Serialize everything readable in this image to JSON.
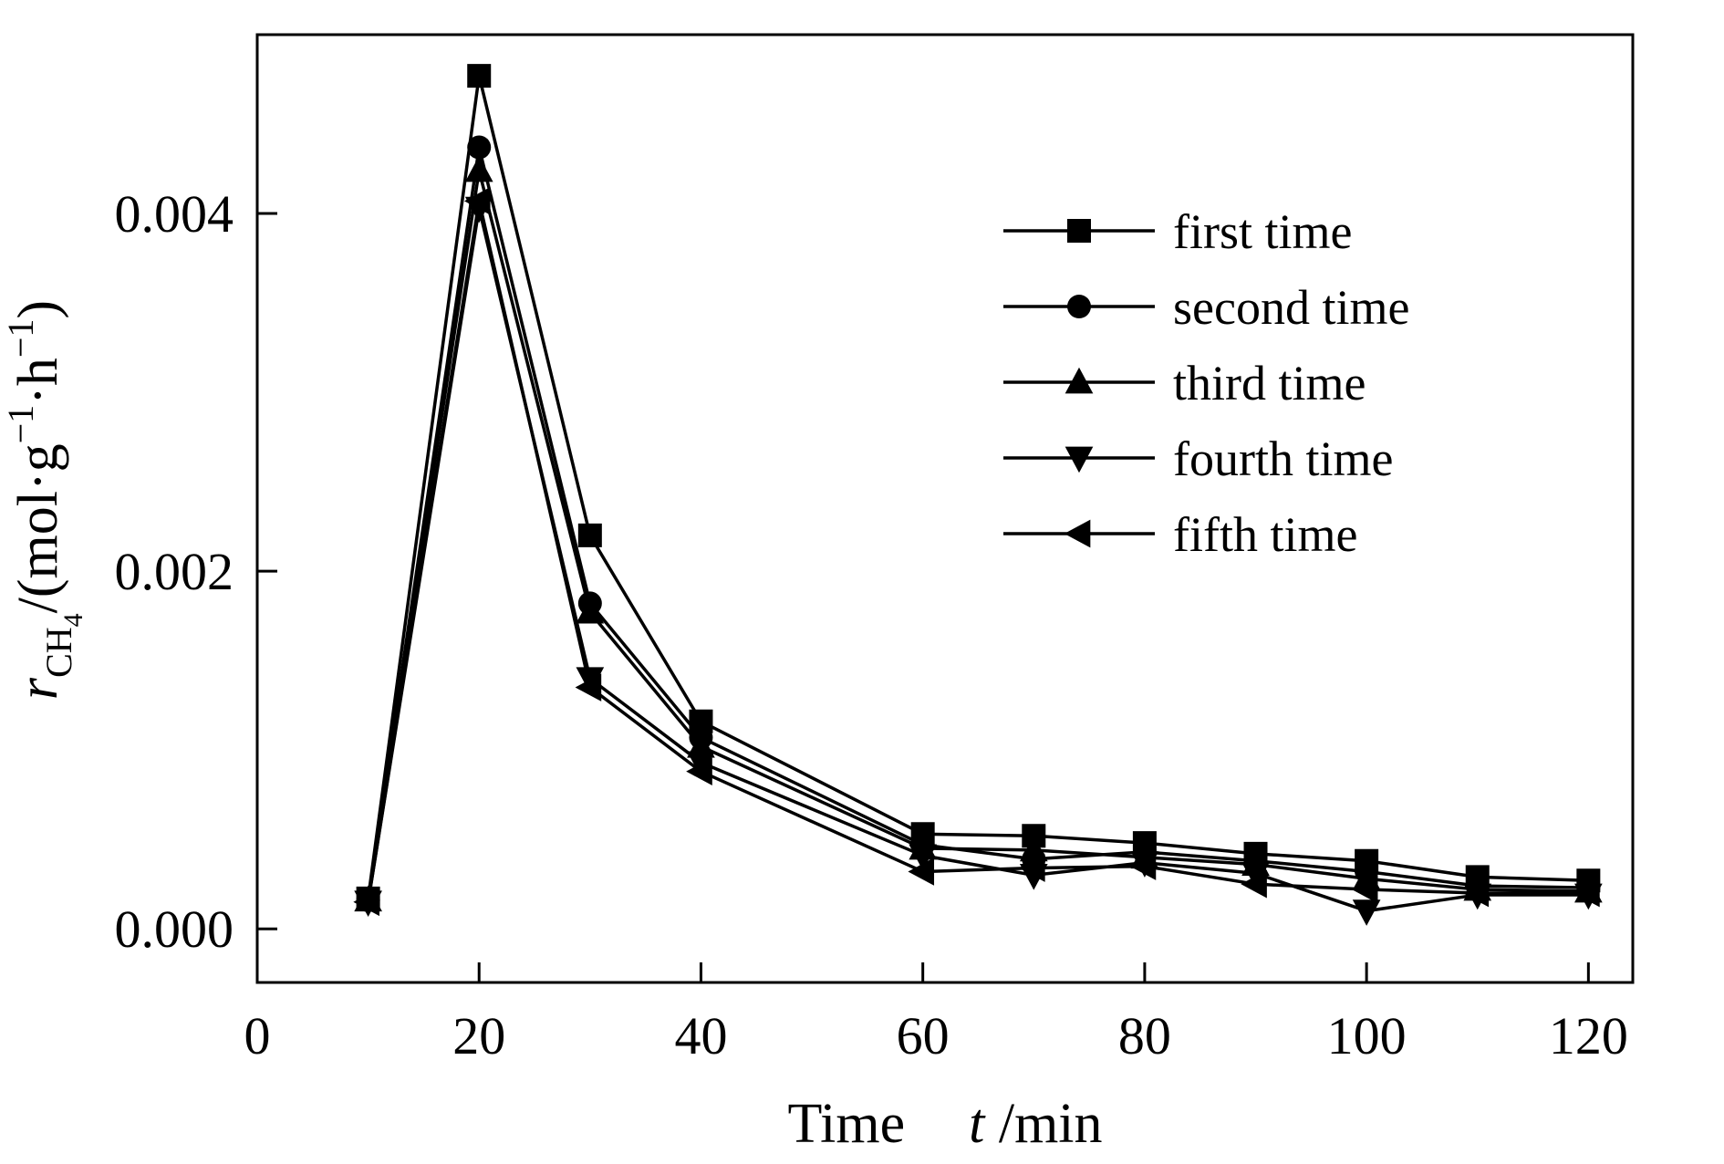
{
  "figure": {
    "background": "#ffffff",
    "ink_color": "#000000"
  },
  "chart_data": {
    "type": "line",
    "x": [
      10,
      20,
      30,
      40,
      60,
      70,
      80,
      90,
      100,
      110,
      120
    ],
    "series": [
      {
        "name": "first time",
        "marker": "square",
        "values": [
          0.00017,
          0.00477,
          0.0022,
          0.00116,
          0.00053,
          0.00052,
          0.00048,
          0.00042,
          0.00038,
          0.00029,
          0.00027
        ]
      },
      {
        "name": "second time",
        "marker": "circle",
        "values": [
          0.00016,
          0.00437,
          0.00182,
          0.00107,
          0.00047,
          0.00039,
          0.00043,
          0.00038,
          0.00032,
          0.00024,
          0.00023
        ]
      },
      {
        "name": "third time",
        "marker": "triangle-up",
        "values": [
          0.00016,
          0.00424,
          0.00177,
          0.00102,
          0.00045,
          0.00044,
          0.0004,
          0.00036,
          0.00028,
          0.00022,
          0.00021
        ]
      },
      {
        "name": "fourth time",
        "marker": "triangle-down",
        "values": [
          0.00015,
          0.00403,
          0.0014,
          0.00093,
          0.00041,
          0.0003,
          0.00037,
          0.00031,
          0.0001,
          0.00019,
          0.00019
        ]
      },
      {
        "name": "fifth time",
        "marker": "triangle-left",
        "values": [
          0.00015,
          0.00407,
          0.00135,
          0.00088,
          0.00032,
          0.00034,
          0.00035,
          0.00025,
          0.00022,
          0.0002,
          0.0002
        ]
      }
    ],
    "xticks": [
      0,
      20,
      40,
      60,
      80,
      100,
      120
    ],
    "yticks": [
      {
        "value": 0.0,
        "label": "0.000"
      },
      {
        "value": 0.002,
        "label": "0.002"
      },
      {
        "value": 0.004,
        "label": "0.004"
      }
    ],
    "xlim": [
      0,
      124
    ],
    "ylim": [
      -0.0003,
      0.005
    ],
    "grid": "off",
    "legend_position": "upper right inside",
    "xlabel": {
      "word": "Time",
      "symbol": "t",
      "unit": " /min"
    },
    "ylabel": {
      "symbol": "r",
      "symbol_subscript": "CH",
      "symbol_subscript_sub": "4",
      "unit_open": "/(mol·g",
      "unit_sup_1": "−1",
      "unit_mid": "·h",
      "unit_sup_2": "−1",
      "unit_close": ")"
    },
    "title": ""
  }
}
